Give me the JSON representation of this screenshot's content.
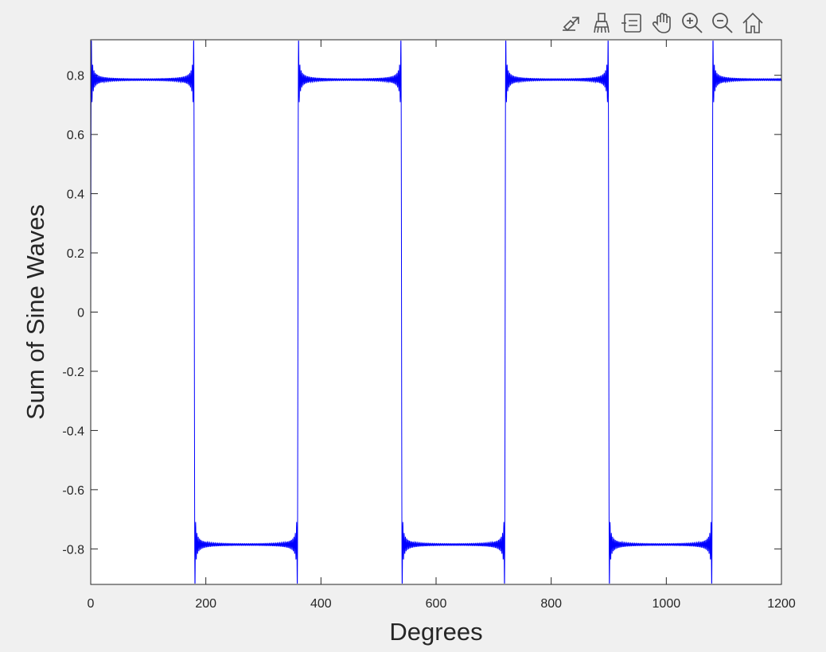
{
  "toolbar": {
    "icons": [
      "export-icon",
      "brush-icon",
      "datatip-icon",
      "pan-icon",
      "zoom-in-icon",
      "zoom-out-icon",
      "home-icon"
    ]
  },
  "chart_data": {
    "type": "line",
    "title": "",
    "xlabel": "Degrees",
    "ylabel": "Sum of Sine Waves",
    "xlim": [
      0,
      1200
    ],
    "ylim": [
      -0.92,
      0.92
    ],
    "xticks": [
      0,
      200,
      400,
      600,
      800,
      1000,
      1200
    ],
    "yticks": [
      -0.8,
      -0.6,
      -0.4,
      -0.2,
      0,
      0.2,
      0.4,
      0.6,
      0.8
    ],
    "grid": false,
    "series_color": "#0000ff",
    "series": [
      {
        "description": "Fourier partial sum of square wave: sum over odd harmonics sin(n*x)/n",
        "x_start": 0,
        "x_end": 1200,
        "x_step": 0.25,
        "plateau_level": 0.785,
        "period_degrees": 360,
        "transitions_at": [
          0,
          180,
          360,
          540,
          720,
          900,
          1080
        ]
      }
    ]
  }
}
